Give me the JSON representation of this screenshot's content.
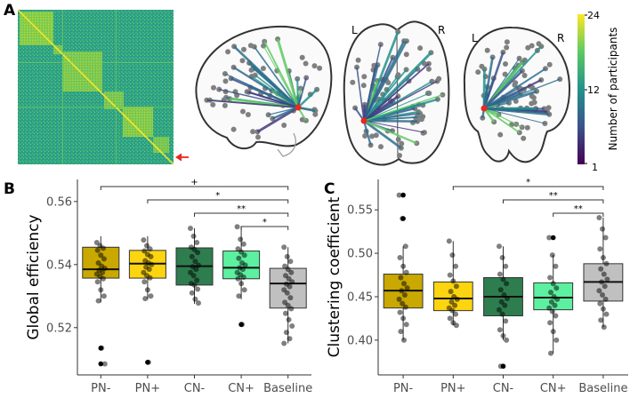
{
  "panels": {
    "a_label": "A",
    "b_label": "B",
    "c_label": "C"
  },
  "panel_a": {
    "hemisphere_left": "L",
    "hemisphere_right": "R",
    "colorbar": {
      "title": "Number of participants",
      "ticks": [
        1,
        12,
        24
      ],
      "min": 1,
      "max": 24,
      "colors": [
        "#440154",
        "#3b528b",
        "#21918c",
        "#5ec962",
        "#fde725"
      ]
    },
    "arrow_color": "#e8291c"
  },
  "chart_data": [
    {
      "type": "box",
      "panel": "B",
      "ylabel": "Global efficiency",
      "categories": [
        "PN-",
        "PN+",
        "CN-",
        "CN+",
        "Baseline"
      ],
      "ylim": [
        0.505,
        0.567
      ],
      "yticks": [
        0.52,
        0.54,
        0.56
      ],
      "ytick_labels": [
        "0.52",
        "0.54",
        "0.56"
      ],
      "colors": [
        "#c9a800",
        "#fcd40f",
        "#2e7d4f",
        "#5cf0a0",
        "#c0c0c0"
      ],
      "boxes": [
        {
          "q1": 0.5357,
          "median": 0.5385,
          "q3": 0.5455,
          "whisker_low": 0.528,
          "whisker_high": 0.549,
          "outliers": [
            0.5135,
            0.5085
          ]
        },
        {
          "q1": 0.5357,
          "median": 0.5403,
          "q3": 0.5445,
          "whisker_low": 0.529,
          "whisker_high": 0.549,
          "outliers": [
            0.509
          ]
        },
        {
          "q1": 0.5335,
          "median": 0.5395,
          "q3": 0.5453,
          "whisker_low": 0.5275,
          "whisker_high": 0.5515,
          "outliers": []
        },
        {
          "q1": 0.5355,
          "median": 0.539,
          "q3": 0.5443,
          "whisker_low": 0.529,
          "whisker_high": 0.552,
          "outliers": [
            0.521
          ]
        },
        {
          "q1": 0.5262,
          "median": 0.534,
          "q3": 0.5388,
          "whisker_low": 0.515,
          "whisker_high": 0.5455,
          "outliers": []
        }
      ],
      "points": [
        [
          0.547,
          0.546,
          0.5452,
          0.5445,
          0.543,
          0.5418,
          0.5405,
          0.5395,
          0.5388,
          0.5382,
          0.5375,
          0.537,
          0.5362,
          0.5355,
          0.5345,
          0.532,
          0.53,
          0.5285,
          0.5135,
          0.5085
        ],
        [
          0.5478,
          0.546,
          0.545,
          0.5443,
          0.5432,
          0.5425,
          0.5412,
          0.5405,
          0.54,
          0.5392,
          0.5385,
          0.5375,
          0.5365,
          0.5358,
          0.5345,
          0.532,
          0.53,
          0.5292,
          0.509
        ],
        [
          0.5515,
          0.549,
          0.547,
          0.5455,
          0.5448,
          0.5438,
          0.5425,
          0.541,
          0.5398,
          0.5393,
          0.5385,
          0.5375,
          0.5365,
          0.535,
          0.534,
          0.5335,
          0.5322,
          0.531,
          0.529,
          0.5278
        ],
        [
          0.552,
          0.548,
          0.5465,
          0.545,
          0.544,
          0.543,
          0.542,
          0.5405,
          0.5398,
          0.539,
          0.5385,
          0.5375,
          0.5368,
          0.536,
          0.5355,
          0.534,
          0.532,
          0.53,
          0.521
        ],
        [
          0.5455,
          0.5425,
          0.541,
          0.5395,
          0.5385,
          0.5375,
          0.5365,
          0.5355,
          0.5345,
          0.5338,
          0.533,
          0.532,
          0.531,
          0.5295,
          0.528,
          0.527,
          0.526,
          0.5245,
          0.5225,
          0.5205,
          0.5185,
          0.5165,
          0.515
        ]
      ],
      "significance": [
        {
          "from": 0,
          "to": 4,
          "label": "+"
        },
        {
          "from": 1,
          "to": 4,
          "label": "*"
        },
        {
          "from": 2,
          "to": 4,
          "label": "**"
        },
        {
          "from": 3,
          "to": 4,
          "label": "*"
        }
      ]
    },
    {
      "type": "box",
      "panel": "C",
      "ylabel": "Clustering coefficient",
      "categories": [
        "PN-",
        "PN+",
        "CN-",
        "CN+",
        "Baseline"
      ],
      "ylim": [
        0.36,
        0.585
      ],
      "yticks": [
        0.4,
        0.45,
        0.5,
        0.55
      ],
      "ytick_labels": [
        "0.40",
        "0.45",
        "0.50",
        "0.55"
      ],
      "colors": [
        "#c9a800",
        "#fcd40f",
        "#2e7d4f",
        "#5cf0a0",
        "#c0c0c0"
      ],
      "boxes": [
        {
          "q1": 0.437,
          "median": 0.457,
          "q3": 0.476,
          "whisker_low": 0.4,
          "whisker_high": 0.508,
          "outliers": [
            0.567,
            0.54
          ]
        },
        {
          "q1": 0.434,
          "median": 0.448,
          "q3": 0.467,
          "whisker_low": 0.417,
          "whisker_high": 0.514,
          "outliers": []
        },
        {
          "q1": 0.428,
          "median": 0.45,
          "q3": 0.472,
          "whisker_low": 0.4,
          "whisker_high": 0.508,
          "outliers": [
            0.37
          ]
        },
        {
          "q1": 0.435,
          "median": 0.449,
          "q3": 0.466,
          "whisker_low": 0.385,
          "whisker_high": 0.498,
          "outliers": [
            0.518
          ]
        },
        {
          "q1": 0.445,
          "median": 0.467,
          "q3": 0.488,
          "whisker_low": 0.415,
          "whisker_high": 0.541,
          "outliers": []
        }
      ],
      "points": [
        [
          0.567,
          0.54,
          0.508,
          0.495,
          0.485,
          0.478,
          0.472,
          0.465,
          0.46,
          0.457,
          0.452,
          0.447,
          0.442,
          0.438,
          0.432,
          0.425,
          0.418,
          0.41,
          0.4
        ],
        [
          0.514,
          0.498,
          0.485,
          0.475,
          0.468,
          0.462,
          0.456,
          0.45,
          0.447,
          0.444,
          0.44,
          0.437,
          0.434,
          0.43,
          0.425,
          0.42,
          0.417
        ],
        [
          0.508,
          0.495,
          0.485,
          0.476,
          0.47,
          0.465,
          0.458,
          0.452,
          0.448,
          0.444,
          0.44,
          0.435,
          0.43,
          0.422,
          0.412,
          0.405,
          0.4,
          0.37
        ],
        [
          0.518,
          0.498,
          0.485,
          0.472,
          0.465,
          0.46,
          0.455,
          0.45,
          0.447,
          0.444,
          0.44,
          0.437,
          0.433,
          0.428,
          0.42,
          0.41,
          0.4,
          0.385
        ],
        [
          0.541,
          0.528,
          0.518,
          0.505,
          0.495,
          0.488,
          0.482,
          0.476,
          0.47,
          0.467,
          0.462,
          0.457,
          0.452,
          0.447,
          0.442,
          0.436,
          0.43,
          0.423,
          0.415
        ]
      ],
      "significance": [
        {
          "from": 1,
          "to": 4,
          "label": "*"
        },
        {
          "from": 2,
          "to": 4,
          "label": "**"
        },
        {
          "from": 3,
          "to": 4,
          "label": "**"
        }
      ]
    }
  ]
}
